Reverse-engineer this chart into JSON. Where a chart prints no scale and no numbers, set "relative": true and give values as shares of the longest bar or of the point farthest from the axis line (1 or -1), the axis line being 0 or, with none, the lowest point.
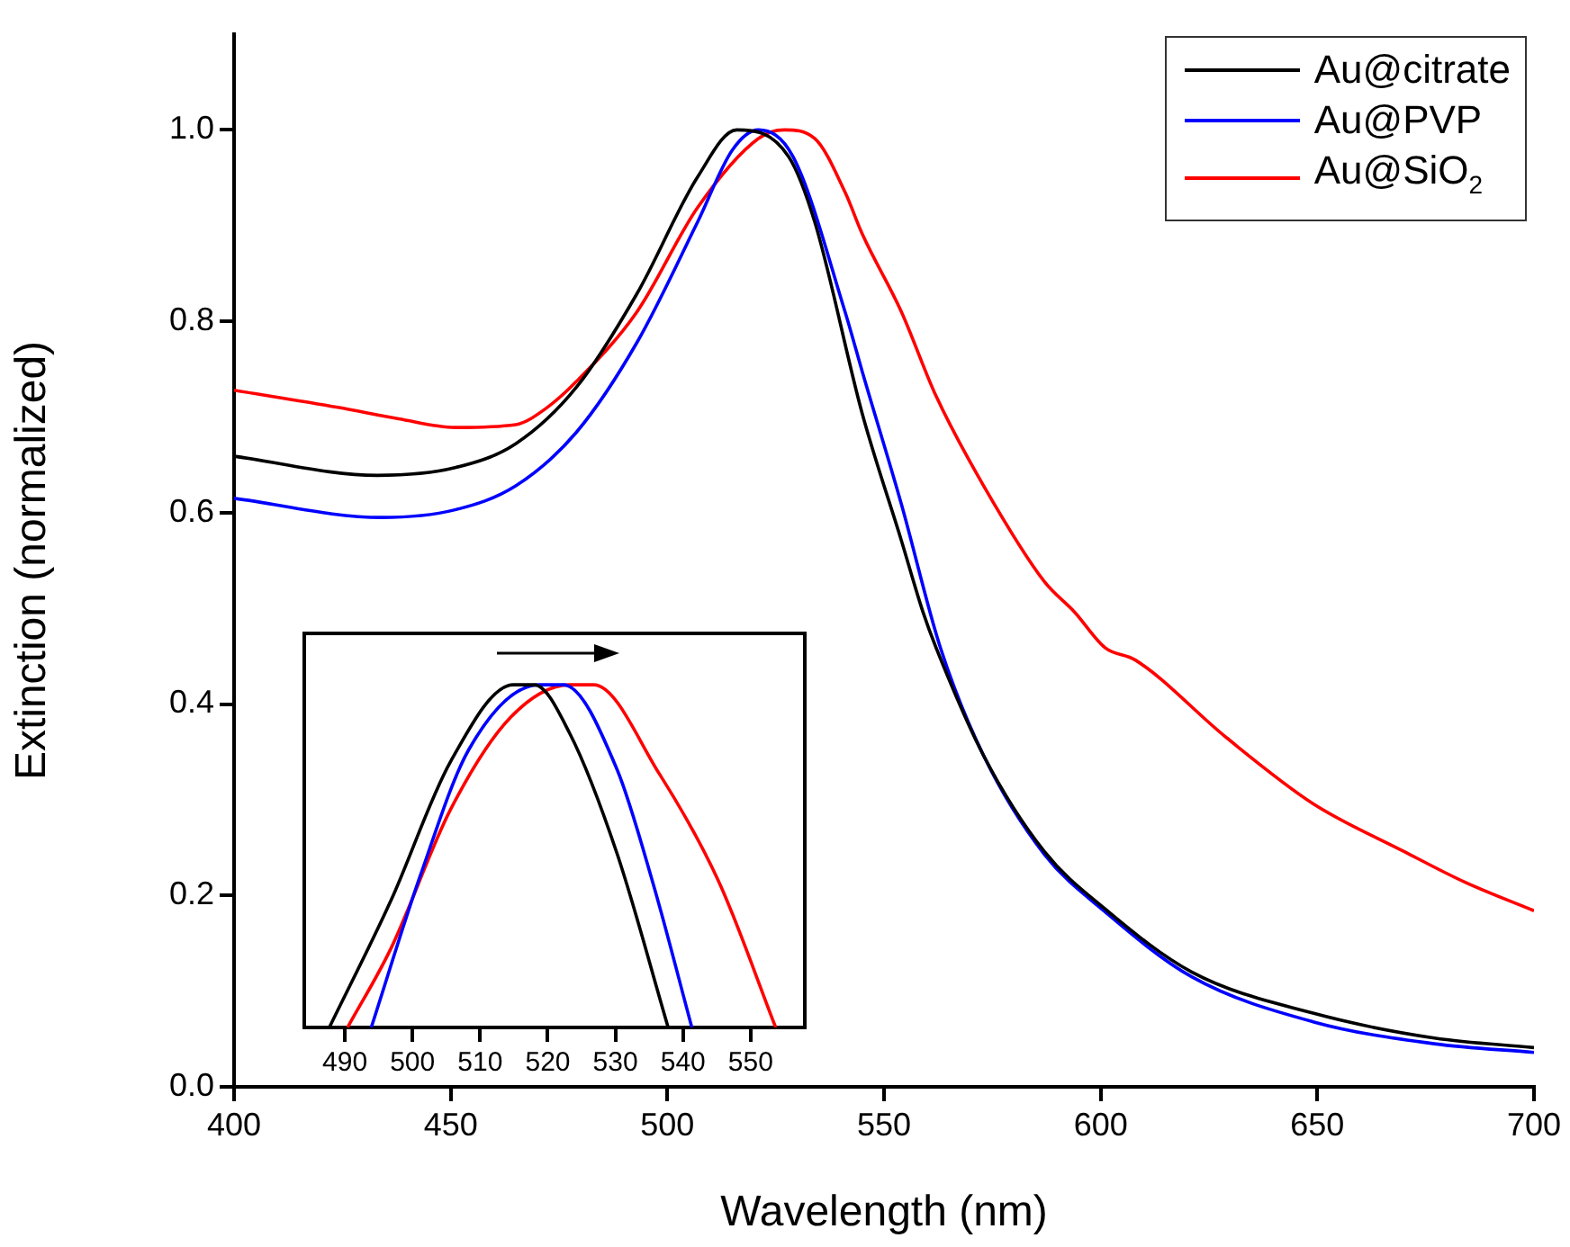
{
  "chart_data": [
    {
      "type": "line",
      "xlabel": "Wavelength (nm)",
      "ylabel": "Extinction (normalized)",
      "xlim": [
        400,
        700
      ],
      "xticks": [
        400,
        450,
        500,
        550,
        600,
        650,
        700
      ],
      "ylim": [
        0,
        1.1
      ],
      "yticks": [
        {
          "value": 0,
          "label": "0.0"
        },
        {
          "value": 0.2,
          "label": "0.2"
        },
        {
          "value": 0.4,
          "label": "0.4"
        },
        {
          "value": 0.6,
          "label": "0.6"
        },
        {
          "value": 0.8,
          "label": "0.8"
        },
        {
          "value": 1,
          "label": "1.0"
        }
      ],
      "grid": false,
      "legend": "top right",
      "marker": "none",
      "line_style": "solid",
      "series": [
        {
          "name": "Au@citrate",
          "color": "#000000",
          "x": [
            400,
            433,
            451,
            465,
            479,
            493,
            507,
            516,
            528,
            534,
            545,
            554,
            559,
            562,
            573,
            587,
            601,
            621,
            649,
            677,
            700
          ],
          "values": [
            0.659,
            0.639,
            0.647,
            0.672,
            0.731,
            0.829,
            0.951,
            1.0,
            0.972,
            0.904,
            0.703,
            0.571,
            0.496,
            0.459,
            0.346,
            0.246,
            0.186,
            0.12,
            0.077,
            0.051,
            0.041
          ]
        },
        {
          "name": "Au@PVP",
          "color": "#0000ff",
          "x": [
            400,
            434,
            451,
            465,
            479,
            493,
            507,
            515,
            521,
            529,
            541,
            545,
            554,
            563,
            573,
            587,
            601,
            621,
            649,
            677,
            700
          ],
          "values": [
            0.615,
            0.595,
            0.603,
            0.628,
            0.684,
            0.778,
            0.904,
            0.979,
            1.0,
            0.972,
            0.81,
            0.747,
            0.609,
            0.459,
            0.346,
            0.243,
            0.183,
            0.115,
            0.068,
            0.045,
            0.036
          ]
        },
        {
          "name": "Au@SiO$_{2}$",
          "color": "#ff0000",
          "x": [
            400,
            424,
            438,
            451,
            465,
            472,
            479,
            493,
            507,
            521,
            527,
            534,
            541,
            545,
            554,
            562,
            573,
            587,
            594,
            601,
            608,
            629,
            649,
            670,
            684,
            700
          ],
          "values": [
            0.728,
            0.71,
            0.698,
            0.689,
            0.692,
            0.709,
            0.737,
            0.81,
            0.919,
            0.991,
            1.0,
            0.991,
            0.935,
            0.891,
            0.81,
            0.722,
            0.628,
            0.528,
            0.496,
            0.459,
            0.446,
            0.365,
            0.296,
            0.246,
            0.214,
            0.184
          ]
        }
      ]
    },
    {
      "type": "line",
      "xlim": [
        484,
        558
      ],
      "xticks": [
        490,
        500,
        510,
        520,
        530,
        540,
        550
      ],
      "relative": true,
      "grid": false,
      "legend": false,
      "marker": "none",
      "line_style": "solid",
      "series": [
        {
          "color": "#000000",
          "x": [
            487.7,
            496.8,
            505.6,
            514.9,
            518,
            523.2,
            530.2,
            537.8
          ],
          "values": [
            0,
            0.37,
            0.775,
            1,
            1,
            0.86,
            0.51,
            0
          ]
        },
        {
          "color": "#0000ff",
          "x": [
            493.9,
            501.1,
            508.3,
            518.8,
            522.3,
            530.2,
            535.5,
            541.3
          ],
          "values": [
            0,
            0.44,
            0.81,
            1,
            1,
            0.755,
            0.425,
            0
          ]
        },
        {
          "color": "#ff0000",
          "x": [
            490.4,
            496.8,
            505.6,
            514.5,
            523.3,
            526.8,
            536.5,
            545.3,
            553.7
          ],
          "values": [
            0,
            0.23,
            0.635,
            0.905,
            1,
            1,
            0.74,
            0.425,
            0
          ]
        }
      ]
    }
  ]
}
